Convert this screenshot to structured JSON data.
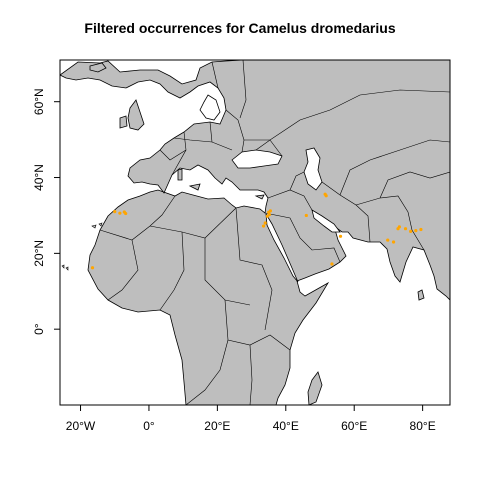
{
  "title": "Filtered occurrences for Camelus dromedarius",
  "x_ticks": [
    {
      "lon": -20,
      "label": "20°W"
    },
    {
      "lon": 0,
      "label": "0°"
    },
    {
      "lon": 20,
      "label": "20°E"
    },
    {
      "lon": 40,
      "label": "40°E"
    },
    {
      "lon": 60,
      "label": "60°E"
    },
    {
      "lon": 80,
      "label": "80°E"
    }
  ],
  "y_ticks": [
    {
      "lat": 0,
      "label": "0°"
    },
    {
      "lat": 20,
      "label": "20°N"
    },
    {
      "lat": 40,
      "label": "40°N"
    },
    {
      "lat": 60,
      "label": "60°N"
    }
  ],
  "extent": {
    "lon": [
      -26,
      88
    ],
    "lat": [
      -20,
      71
    ]
  },
  "colors": {
    "land": "#bebebe",
    "border": "#000000",
    "point": "#ffa500",
    "background": "#ffffff"
  },
  "chart_data": {
    "type": "scatter",
    "title": "Filtered occurrences for Camelus dromedarius",
    "xlim": [
      -26,
      88
    ],
    "ylim": [
      -20,
      71
    ],
    "points": [
      [
        -16.5,
        16.2
      ],
      [
        -10.0,
        31.0
      ],
      [
        -8.5,
        30.6
      ],
      [
        -7.2,
        30.9
      ],
      [
        -6.8,
        30.5
      ],
      [
        35.0,
        30.8
      ],
      [
        35.5,
        31.2
      ],
      [
        34.6,
        29.8
      ],
      [
        35.2,
        30.2
      ],
      [
        34.0,
        28.0
      ],
      [
        33.5,
        27.2
      ],
      [
        46.0,
        30.0
      ],
      [
        51.5,
        35.6
      ],
      [
        51.8,
        35.2
      ],
      [
        56.0,
        24.5
      ],
      [
        53.5,
        17.2
      ],
      [
        69.8,
        23.5
      ],
      [
        71.5,
        23.0
      ],
      [
        72.8,
        26.5
      ],
      [
        73.2,
        27.0
      ],
      [
        75.0,
        26.5
      ],
      [
        76.5,
        25.8
      ],
      [
        78.0,
        26.0
      ],
      [
        79.5,
        26.3
      ]
    ]
  }
}
